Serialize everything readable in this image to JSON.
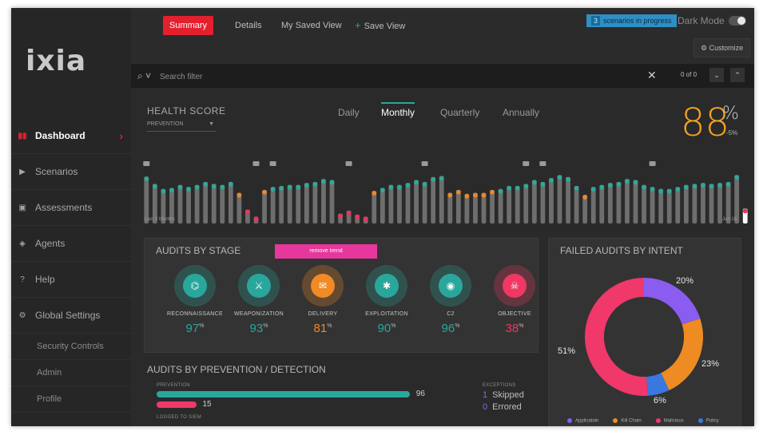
{
  "app": {
    "logo": "ixia"
  },
  "topbar": {
    "tabs": [
      {
        "label": "Summary",
        "active": true
      },
      {
        "label": "Details"
      },
      {
        "label": "My Saved View"
      },
      {
        "label": "Save View"
      }
    ],
    "progress_count": "3",
    "progress_text": "scenarios in progress",
    "dark_mode_label": "Dark Mode",
    "dark_mode_on": true,
    "customize_label": "Customize"
  },
  "search": {
    "placeholder": "Search filter",
    "counter": "0 of 0"
  },
  "sidebar": {
    "items": [
      {
        "label": "Dashboard",
        "active": true
      },
      {
        "label": "Scenarios"
      },
      {
        "label": "Assessments"
      },
      {
        "label": "Agents"
      },
      {
        "label": "Help"
      },
      {
        "label": "Global Settings"
      }
    ],
    "subitems": [
      "Security Controls",
      "Admin",
      "Profile"
    ]
  },
  "health": {
    "title": "HEALTH SCORE",
    "filter": "PREVENTION",
    "periods": [
      "Daily",
      "Monthly",
      "Quarterly",
      "Annually"
    ],
    "active_period": "Monthly",
    "score": "88",
    "score_unit": "%",
    "delta": "-5%",
    "x_start_label": "Last 3 Months",
    "x_end_label": "Jun 18"
  },
  "chart_data": {
    "type": "bar",
    "values": [
      95,
      80,
      70,
      72,
      78,
      74,
      78,
      84,
      80,
      78,
      84,
      62,
      28,
      14,
      68,
      74,
      76,
      78,
      78,
      82,
      84,
      90,
      88,
      20,
      26,
      18,
      14,
      66,
      72,
      78,
      78,
      82,
      88,
      84,
      94,
      96,
      62,
      68,
      60,
      62,
      62,
      68,
      70,
      76,
      76,
      80,
      88,
      84,
      92,
      98,
      94,
      76,
      58,
      74,
      78,
      82,
      84,
      90,
      88,
      78,
      74,
      70,
      70,
      74,
      78,
      80,
      82,
      80,
      82,
      84,
      98,
      30
    ],
    "comment_markers": [
      0,
      13,
      15,
      24,
      33,
      45,
      47,
      60
    ],
    "colors": {
      "bar": "#6e6e6e",
      "high": "#2fa89b",
      "mid": "#e8892a",
      "low": "#e8365d",
      "last": "#ffffff"
    }
  },
  "audits_by_stage": {
    "title": "AUDITS BY STAGE",
    "remove_trend_label": "remove trend",
    "stages": [
      {
        "name": "RECONNAISSANCE",
        "value": "97",
        "unit": "%",
        "icon": "binoculars-icon",
        "glyph": "⌬",
        "color": "#2aa79c"
      },
      {
        "name": "WEAPONIZATION",
        "value": "93",
        "unit": "%",
        "icon": "gun-icon",
        "glyph": "⚔",
        "color": "#2aa79c"
      },
      {
        "name": "DELIVERY",
        "value": "81",
        "unit": "%",
        "icon": "envelope-icon",
        "glyph": "✉",
        "color": "#f08a24"
      },
      {
        "name": "EXPLOITATION",
        "value": "90",
        "unit": "%",
        "icon": "bug-icon",
        "glyph": "✱",
        "color": "#2aa79c"
      },
      {
        "name": "C2",
        "value": "96",
        "unit": "%",
        "icon": "satellite-dish-icon",
        "glyph": "◉",
        "color": "#2aa79c"
      },
      {
        "name": "OBJECTIVE",
        "value": "38",
        "unit": "%",
        "icon": "skull-icon",
        "glyph": "☠",
        "color": "#ef3863"
      }
    ]
  },
  "prevention_detection": {
    "title": "AUDITS BY PREVENTION / DETECTION",
    "prevention_label": "PREVENTION",
    "prevention_value": 96,
    "prevention_bar_value": 15,
    "logged_label": "LOGGED TO SIEM",
    "exceptions_label": "EXCEPTIONS",
    "skipped_count": "1",
    "skipped_label": "Skipped",
    "errored_count": "0",
    "errored_label": "Errored"
  },
  "failed_by_intent": {
    "title": "FAILED AUDITS BY INTENT",
    "slices": [
      {
        "label": "Application",
        "value": 20,
        "pct": "20%",
        "color": "#8a5cf0"
      },
      {
        "label": "Kill Chain",
        "value": 23,
        "pct": "23%",
        "color": "#ee8b22"
      },
      {
        "label": "Policy",
        "value": 6,
        "pct": "6%",
        "color": "#3a78e0"
      },
      {
        "label": "Malicious",
        "value": 51,
        "pct": "51%",
        "color": "#f0386a"
      }
    ],
    "legend": [
      {
        "label": "Applicatoin",
        "color": "#8a5cf0"
      },
      {
        "label": "Kill Chain",
        "color": "#ee8b22"
      },
      {
        "label": "Malicious",
        "color": "#f0386a"
      },
      {
        "label": "Policy",
        "color": "#3a78e0"
      }
    ]
  }
}
